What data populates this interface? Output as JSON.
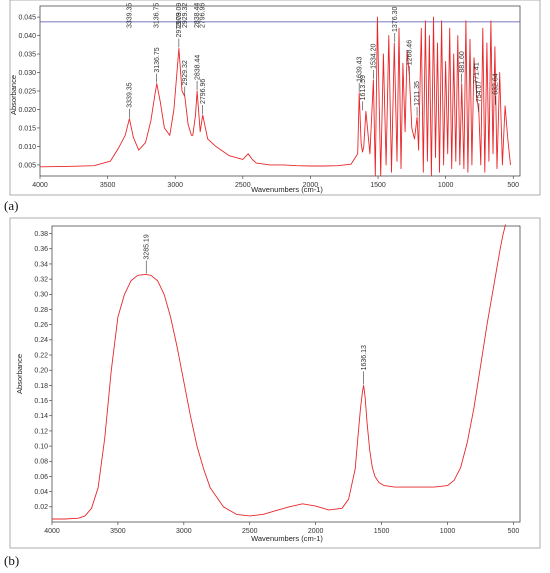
{
  "panel_a_label": "(a)",
  "panel_b_label": "(b)",
  "colors": {
    "spectrum": "#e8272a",
    "baseline": "#4a4ab0",
    "axes": "#333333",
    "peak_marker": "#333333"
  },
  "chart_data": [
    {
      "type": "line",
      "panel": "(a)",
      "xlabel": "Wavenumbers (cm-1)",
      "ylabel": "Absorbance",
      "xlim": [
        4000,
        450
      ],
      "ylim": [
        0.002,
        0.048
      ],
      "x_ticks": [
        4000,
        3500,
        3000,
        2500,
        2000,
        1500,
        1000,
        500
      ],
      "y_ticks": [
        0.005,
        0.01,
        0.015,
        0.02,
        0.025,
        0.03,
        0.035,
        0.04,
        0.045
      ],
      "grid": false,
      "baseline_y": 0.0437,
      "series": [
        {
          "x": [
            4000,
            3800,
            3600,
            3480,
            3420,
            3370,
            3339,
            3310,
            3270,
            3220,
            3180,
            3150,
            3136,
            3110,
            3080,
            3040,
            3010,
            2973,
            2950,
            2929,
            2905,
            2880,
            2870,
            2850,
            2838,
            2815,
            2797,
            2760,
            2700,
            2600,
            2500,
            2460,
            2430,
            2400,
            2300,
            2200,
            2100,
            2000,
            1900,
            1800,
            1700,
            1650,
            1639,
            1625,
            1615,
            1605,
            1590,
            1560,
            1534,
            1520,
            1505,
            1480,
            1460,
            1440,
            1420,
            1400,
            1380,
            1360,
            1345,
            1330,
            1316,
            1300,
            1285,
            1268,
            1250,
            1230,
            1211,
            1200,
            1180,
            1165,
            1150,
            1135,
            1120,
            1105,
            1090,
            1075,
            1060,
            1045,
            1030,
            1015,
            1000,
            985,
            970,
            955,
            940,
            925,
            910,
            895,
            881,
            865,
            850,
            835,
            820,
            806,
            790,
            771,
            754,
            740,
            725,
            710,
            695,
            680,
            665,
            650,
            636,
            620,
            600,
            580,
            560,
            540,
            520
          ],
          "y": [
            0.0045,
            0.0046,
            0.0048,
            0.006,
            0.0095,
            0.013,
            0.0175,
            0.0125,
            0.009,
            0.011,
            0.017,
            0.024,
            0.027,
            0.022,
            0.015,
            0.013,
            0.02,
            0.0365,
            0.025,
            0.0235,
            0.016,
            0.013,
            0.013,
            0.0185,
            0.025,
            0.014,
            0.0185,
            0.012,
            0.01,
            0.0075,
            0.0065,
            0.008,
            0.0065,
            0.0055,
            0.005,
            0.005,
            0.0048,
            0.0047,
            0.0047,
            0.0048,
            0.0052,
            0.008,
            0.0245,
            0.011,
            0.0085,
            0.01,
            0.0195,
            0.008,
            0.028,
            0.002,
            0.045,
            0.002,
            0.035,
            0.005,
            0.04,
            0.003,
            0.038,
            0.006,
            0.042,
            0.004,
            0.0325,
            0.014,
            0.036,
            0.029,
            0.015,
            0.012,
            0.018,
            0.009,
            0.042,
            0.003,
            0.044,
            0.006,
            0.04,
            0.002,
            0.045,
            0.007,
            0.038,
            0.003,
            0.044,
            0.005,
            0.033,
            0.008,
            0.042,
            0.004,
            0.035,
            0.006,
            0.04,
            0.005,
            0.027,
            0.004,
            0.044,
            0.003,
            0.039,
            0.005,
            0.034,
            0.024,
            0.019,
            0.005,
            0.042,
            0.003,
            0.038,
            0.006,
            0.044,
            0.008,
            0.037,
            0.004,
            0.03,
            0.005,
            0.021,
            0.012,
            0.005
          ]
        }
      ],
      "peak_labels": [
        {
          "x": 3339.35,
          "y": 0.0175,
          "text": "3339.35"
        },
        {
          "x": 3136.75,
          "y": 0.027,
          "text": "3136.75"
        },
        {
          "x": 2973.09,
          "y": 0.0365,
          "text": "2973.09"
        },
        {
          "x": 2929.32,
          "y": 0.0235,
          "text": "2929.32"
        },
        {
          "x": 2838.44,
          "y": 0.025,
          "text": "2838.44"
        },
        {
          "x": 2796.96,
          "y": 0.0185,
          "text": "2796.96"
        },
        {
          "x": 1639.43,
          "y": 0.0245,
          "text": "1639.43"
        },
        {
          "x": 1613.59,
          "y": 0.0195,
          "text": "1613.59"
        },
        {
          "x": 1534.2,
          "y": 0.028,
          "text": "1534.20"
        },
        {
          "x": 1376.3,
          "y": 0.038,
          "text": "1376.30"
        },
        {
          "x": 1268.46,
          "y": 0.029,
          "text": "1268.46"
        },
        {
          "x": 1211.35,
          "y": 0.018,
          "text": "1211.35"
        },
        {
          "x": 881.6,
          "y": 0.027,
          "text": "881.60"
        },
        {
          "x": 771.41,
          "y": 0.024,
          "text": "771.41"
        },
        {
          "x": 754.07,
          "y": 0.019,
          "text": "754.07"
        },
        {
          "x": 632.64,
          "y": 0.021,
          "text": "632.64"
        }
      ],
      "top_labels": [
        {
          "x": 3339.35,
          "text": "3339.35"
        },
        {
          "x": 3136.75,
          "text": "3136.75"
        },
        {
          "x": 2973.09,
          "text": "2973.09"
        },
        {
          "x": 2929.32,
          "text": "2929.32"
        },
        {
          "x": 2838.44,
          "text": "2838.44"
        },
        {
          "x": 2796.96,
          "text": "2796.96"
        }
      ]
    },
    {
      "type": "line",
      "panel": "(b)",
      "xlabel": "Wavenumbers (cm-1)",
      "ylabel": "Absorbance",
      "xlim": [
        4000,
        450
      ],
      "ylim": [
        0.0,
        0.39
      ],
      "x_ticks": [
        4000,
        3500,
        3000,
        2500,
        2000,
        1500,
        1000,
        500
      ],
      "y_ticks": [
        0.02,
        0.04,
        0.06,
        0.08,
        0.1,
        0.12,
        0.14,
        0.16,
        0.18,
        0.2,
        0.22,
        0.24,
        0.26,
        0.28,
        0.3,
        0.32,
        0.34,
        0.36,
        0.38
      ],
      "grid": false,
      "series": [
        {
          "x": [
            4000,
            3900,
            3800,
            3750,
            3700,
            3650,
            3600,
            3550,
            3500,
            3450,
            3400,
            3350,
            3300,
            3285,
            3250,
            3200,
            3150,
            3100,
            3050,
            3000,
            2950,
            2900,
            2850,
            2800,
            2700,
            2600,
            2500,
            2400,
            2300,
            2200,
            2100,
            2000,
            1900,
            1800,
            1750,
            1700,
            1680,
            1660,
            1645,
            1636,
            1625,
            1610,
            1590,
            1570,
            1550,
            1520,
            1480,
            1440,
            1400,
            1300,
            1200,
            1100,
            1000,
            950,
            900,
            850,
            800,
            750,
            700,
            650,
            600,
            580,
            560
          ],
          "y": [
            0.004,
            0.004,
            0.005,
            0.008,
            0.018,
            0.045,
            0.11,
            0.2,
            0.27,
            0.3,
            0.318,
            0.325,
            0.326,
            0.326,
            0.325,
            0.318,
            0.3,
            0.27,
            0.23,
            0.185,
            0.14,
            0.1,
            0.07,
            0.045,
            0.02,
            0.01,
            0.008,
            0.01,
            0.015,
            0.02,
            0.024,
            0.021,
            0.016,
            0.018,
            0.03,
            0.07,
            0.11,
            0.15,
            0.172,
            0.18,
            0.165,
            0.13,
            0.095,
            0.072,
            0.06,
            0.052,
            0.048,
            0.047,
            0.046,
            0.046,
            0.046,
            0.046,
            0.048,
            0.055,
            0.072,
            0.105,
            0.15,
            0.205,
            0.26,
            0.31,
            0.36,
            0.378,
            0.392
          ]
        }
      ],
      "peak_labels": [
        {
          "x": 3285.19,
          "y": 0.326,
          "text": "3285.19"
        },
        {
          "x": 1636.13,
          "y": 0.18,
          "text": "1636.13"
        }
      ]
    }
  ]
}
